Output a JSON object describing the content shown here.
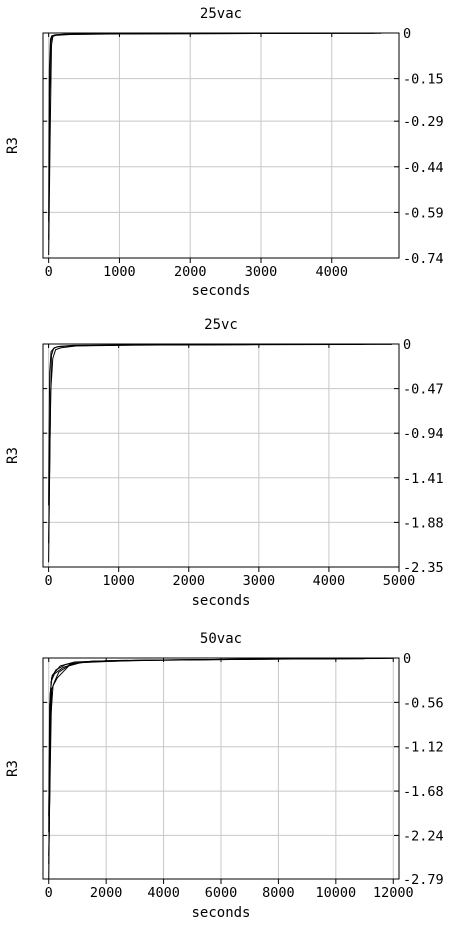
{
  "chart_data": [
    {
      "type": "line",
      "title": "25vac",
      "xlabel": "seconds",
      "ylabel": "R3",
      "xlim": [
        -80,
        4950
      ],
      "ylim": [
        -0.74,
        0
      ],
      "x_ticks": [
        0,
        1000,
        2000,
        3000,
        4000
      ],
      "x_tick_labels": [
        "0",
        "1000",
        "2000",
        "3000",
        "4000"
      ],
      "y_ticks": [
        0,
        -0.15,
        -0.29,
        -0.44,
        -0.59,
        -0.74
      ],
      "y_tick_labels": [
        "0",
        "-0.15",
        "-0.29",
        "-0.44",
        "-0.59",
        "-0.74"
      ],
      "y_axis_side": "right",
      "grid": true,
      "series": [
        {
          "x": [
            0,
            20,
            40,
            60,
            100,
            200,
            500,
            1000,
            2000,
            3000,
            4000,
            4800
          ],
          "y": [
            -0.73,
            -0.35,
            -0.04,
            -0.01,
            -0.006,
            -0.004,
            -0.003,
            -0.002,
            -0.001,
            -0.001,
            -0.001,
            0
          ]
        },
        {
          "x": [
            0,
            15,
            30,
            50,
            100,
            300,
            1000,
            2500,
            4000,
            4700
          ],
          "y": [
            -0.68,
            -0.2,
            -0.03,
            -0.012,
            -0.008,
            -0.005,
            -0.003,
            -0.002,
            -0.001,
            -0.001
          ]
        },
        {
          "x": [
            0,
            10,
            25,
            45,
            90,
            250,
            900,
            2200,
            3800,
            4600
          ],
          "y": [
            -0.62,
            -0.12,
            -0.02,
            -0.009,
            -0.006,
            -0.004,
            -0.003,
            -0.002,
            -0.001,
            -0.001
          ]
        }
      ]
    },
    {
      "type": "line",
      "title": "25vc",
      "xlabel": "seconds",
      "ylabel": "R3",
      "xlim": [
        -80,
        5000
      ],
      "ylim": [
        -2.35,
        0
      ],
      "x_ticks": [
        0,
        1000,
        2000,
        3000,
        4000,
        5000
      ],
      "x_tick_labels": [
        "0",
        "1000",
        "2000",
        "3000",
        "4000",
        "5000"
      ],
      "y_ticks": [
        0,
        -0.47,
        -0.94,
        -1.41,
        -1.88,
        -2.35
      ],
      "y_tick_labels": [
        "0",
        "-0.47",
        "-0.94",
        "-1.41",
        "-1.88",
        "-2.35"
      ],
      "y_axis_side": "right",
      "grid": true,
      "series": [
        {
          "x": [
            0,
            20,
            40,
            70,
            120,
            300,
            1000,
            2500,
            4000,
            4900
          ],
          "y": [
            -2.3,
            -1.0,
            -0.12,
            -0.05,
            -0.03,
            -0.02,
            -0.012,
            -0.008,
            -0.005,
            -0.004
          ]
        },
        {
          "x": [
            0,
            30,
            60,
            100,
            180,
            400,
            1200,
            3000,
            4500
          ],
          "y": [
            -2.1,
            -0.5,
            -0.15,
            -0.06,
            -0.04,
            -0.02,
            -0.012,
            -0.007,
            -0.005
          ]
        },
        {
          "x": [
            0,
            15,
            35,
            80,
            150,
            350,
            1100,
            2800,
            4300
          ],
          "y": [
            -1.7,
            -0.3,
            -0.08,
            -0.04,
            -0.025,
            -0.015,
            -0.01,
            -0.006,
            -0.004
          ]
        }
      ]
    },
    {
      "type": "line",
      "title": "50vac",
      "xlabel": "seconds",
      "ylabel": "R3",
      "xlim": [
        -200,
        12200
      ],
      "ylim": [
        -2.79,
        0
      ],
      "x_ticks": [
        0,
        2000,
        4000,
        6000,
        8000,
        10000,
        12000
      ],
      "x_tick_labels": [
        "0",
        "2000",
        "4000",
        "6000",
        "8000",
        "10000",
        "12000"
      ],
      "y_ticks": [
        0,
        -0.56,
        -1.12,
        -1.68,
        -2.24,
        -2.79
      ],
      "y_tick_labels": [
        "0",
        "-0.56",
        "-1.12",
        "-1.68",
        "-2.24",
        "-2.79"
      ],
      "y_axis_side": "right",
      "grid": true,
      "series": [
        {
          "x": [
            0,
            40,
            80,
            200,
            500,
            1000,
            3000,
            6000,
            9000,
            12000
          ],
          "y": [
            -2.6,
            -1.5,
            -0.3,
            -0.2,
            -0.12,
            -0.06,
            -0.03,
            -0.02,
            -0.01,
            0
          ]
        },
        {
          "x": [
            0,
            60,
            150,
            300,
            700,
            1200,
            3500,
            7000,
            11000
          ],
          "y": [
            -2.79,
            -0.8,
            -0.35,
            -0.25,
            -0.1,
            -0.05,
            -0.03,
            -0.015,
            -0.01
          ]
        },
        {
          "x": [
            0,
            30,
            100,
            250,
            600,
            1500,
            4000,
            8000,
            11500
          ],
          "y": [
            -2.2,
            -0.6,
            -0.25,
            -0.15,
            -0.08,
            -0.04,
            -0.025,
            -0.012,
            -0.005
          ]
        },
        {
          "x": [
            0,
            100,
            200,
            350,
            800,
            2000,
            5000,
            10000
          ],
          "y": [
            -2.5,
            -0.4,
            -0.3,
            -0.18,
            -0.07,
            -0.035,
            -0.02,
            -0.01
          ]
        },
        {
          "x": [
            0,
            50,
            120,
            400,
            900,
            2500,
            6500,
            12000
          ],
          "y": [
            -2.0,
            -0.45,
            -0.22,
            -0.1,
            -0.05,
            -0.03,
            -0.015,
            -0.005
          ]
        }
      ]
    }
  ]
}
